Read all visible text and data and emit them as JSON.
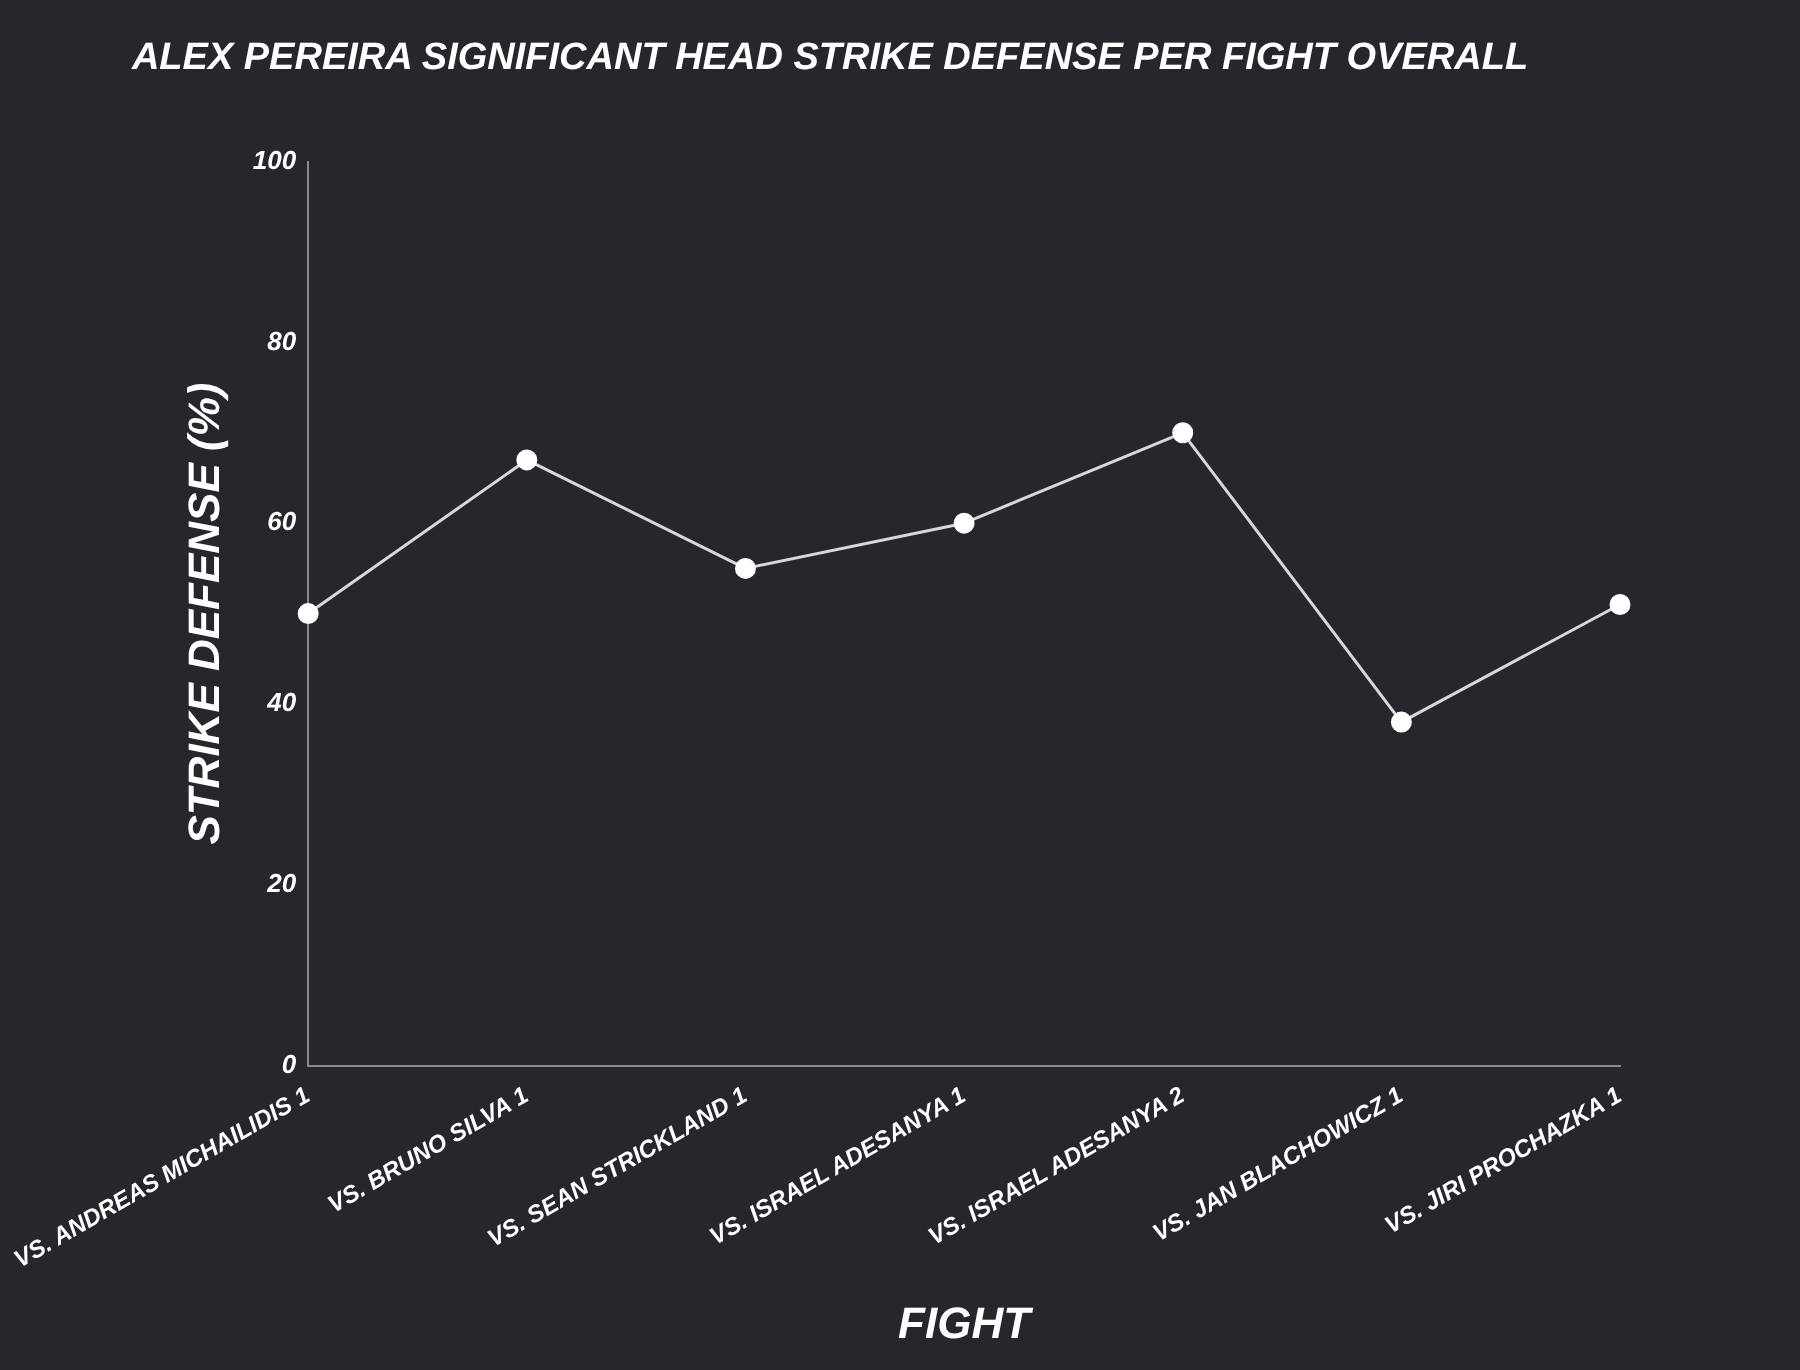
{
  "chart_data": {
    "type": "line",
    "title": "ALEX PEREIRA SIGNIFICANT HEAD STRIKE DEFENSE PER FIGHT OVERALL",
    "xlabel": "FIGHT",
    "ylabel": "STRIKE DEFENSE (%)",
    "categories": [
      "VS. ANDREAS MICHAILIDIS 1",
      "VS. BRUNO SILVA 1",
      "VS. SEAN STRICKLAND 1",
      "VS. ISRAEL ADESANYA 1",
      "VS. ISRAEL ADESANYA 2",
      "VS. JAN BLACHOWICZ 1",
      "VS. JIRI PROCHAZKA 1"
    ],
    "series": [
      {
        "color": "#d8d8d8",
        "values": [
          50,
          67,
          55,
          60,
          70,
          38,
          51
        ]
      }
    ],
    "ylim": [
      0,
      100
    ],
    "yticks": [
      0,
      20,
      40,
      60,
      80,
      100
    ],
    "grid": false,
    "legend": false,
    "marker": "circle",
    "line_style": "solid"
  }
}
